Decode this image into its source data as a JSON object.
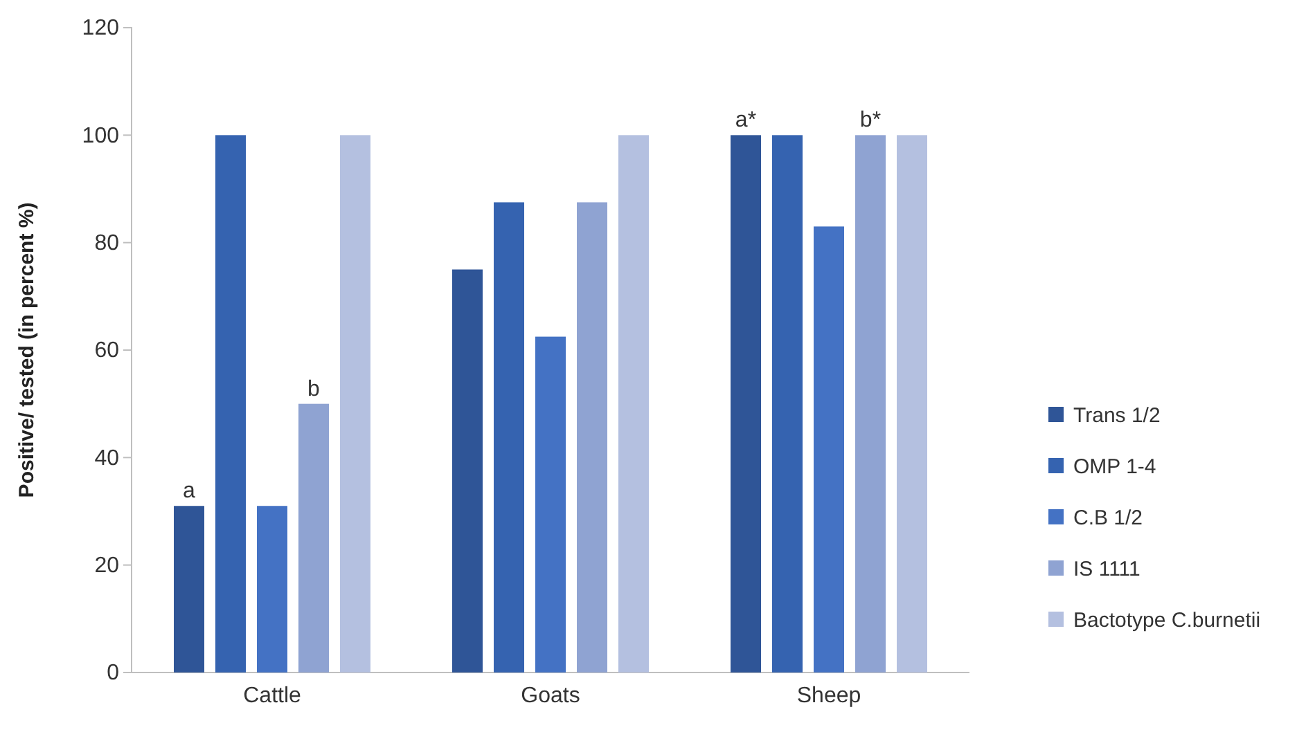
{
  "chart_data": {
    "type": "bar",
    "ylabel": "Positive/ tested (in percent %)",
    "categories": [
      "Cattle",
      "Goats",
      "Sheep"
    ],
    "series": [
      {
        "name": "Trans 1/2",
        "color": "#2f5597",
        "values": [
          31,
          75,
          100
        ],
        "value_labels": [
          "a",
          null,
          "a*"
        ]
      },
      {
        "name": "OMP 1-4",
        "color": "#3563b0",
        "values": [
          100,
          87.5,
          100
        ]
      },
      {
        "name": "C.B 1/2",
        "color": "#4472c4",
        "values": [
          31,
          62.5,
          83
        ]
      },
      {
        "name": "IS 1111",
        "color": "#8fa3d2",
        "values": [
          50,
          87.5,
          100
        ],
        "value_labels": [
          "b",
          null,
          "b*"
        ]
      },
      {
        "name": "Bactotype C.burnetii",
        "color": "#b4c0e0",
        "values": [
          100,
          100,
          100
        ]
      }
    ],
    "ylim": [
      0,
      120
    ],
    "yticks": [
      0,
      20,
      40,
      60,
      80,
      100,
      120
    ],
    "grid": false,
    "legend": "right"
  }
}
